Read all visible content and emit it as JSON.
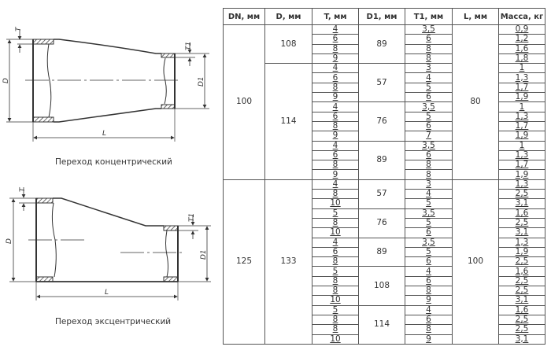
{
  "drawings": {
    "concentric": {
      "caption": "Переход концентрический",
      "labels": {
        "t": "T",
        "d": "D",
        "t1": "T1",
        "d1": "D1",
        "l": "L"
      }
    },
    "eccentric": {
      "caption": "Переход эксцентрический",
      "labels": {
        "t": "T",
        "d": "D",
        "t1": "T1",
        "d1": "D1",
        "l": "L"
      }
    }
  },
  "table": {
    "headers": [
      "DN, мм",
      "D, мм",
      "T, мм",
      "D1, мм",
      "T1, мм",
      "L, мм",
      "Масса, кг"
    ],
    "groups": [
      {
        "dn": "100",
        "l": "80",
        "d_groups": [
          {
            "d": "108",
            "d1_groups": [
              {
                "d1": "89",
                "rows": [
                  [
                    "4",
                    "3,5",
                    "0,9"
                  ],
                  [
                    "6",
                    "6",
                    "1,2"
                  ],
                  [
                    "8",
                    "8",
                    "1,6"
                  ],
                  [
                    "9",
                    "8",
                    "1,8"
                  ]
                ]
              }
            ]
          },
          {
            "d": "114",
            "d1_groups": [
              {
                "d1": "57",
                "rows": [
                  [
                    "4",
                    "3",
                    "1"
                  ],
                  [
                    "6",
                    "4",
                    "1,3"
                  ],
                  [
                    "8",
                    "5",
                    "1,7"
                  ],
                  [
                    "9",
                    "6",
                    "1,9"
                  ]
                ]
              },
              {
                "d1": "76",
                "rows": [
                  [
                    "4",
                    "3,5",
                    "1"
                  ],
                  [
                    "6",
                    "5",
                    "1,3"
                  ],
                  [
                    "8",
                    "6",
                    "1,7"
                  ],
                  [
                    "9",
                    "7",
                    "1,9"
                  ]
                ]
              },
              {
                "d1": "89",
                "rows": [
                  [
                    "4",
                    "3,5",
                    "1"
                  ],
                  [
                    "6",
                    "6",
                    "1,3"
                  ],
                  [
                    "8",
                    "8",
                    "1,7"
                  ],
                  [
                    "9",
                    "8",
                    "1,9"
                  ]
                ]
              }
            ]
          }
        ]
      },
      {
        "dn": "125",
        "l": "100",
        "d_groups": [
          {
            "d": "133",
            "d1_groups": [
              {
                "d1": "57",
                "rows": [
                  [
                    "4",
                    "3",
                    "1,3"
                  ],
                  [
                    "8",
                    "4",
                    "2,5"
                  ],
                  [
                    "10",
                    "5",
                    "3,1"
                  ]
                ]
              },
              {
                "d1": "76",
                "rows": [
                  [
                    "5",
                    "3,5",
                    "1,6"
                  ],
                  [
                    "8",
                    "5",
                    "2,5"
                  ],
                  [
                    "10",
                    "6",
                    "3,1"
                  ]
                ]
              },
              {
                "d1": "89",
                "rows": [
                  [
                    "4",
                    "3,5",
                    "1,3"
                  ],
                  [
                    "6",
                    "5",
                    "1,9"
                  ],
                  [
                    "8",
                    "6",
                    "2,5"
                  ]
                ]
              },
              {
                "d1": "108",
                "rows": [
                  [
                    "5",
                    "4",
                    "1,6"
                  ],
                  [
                    "8",
                    "6",
                    "2,5"
                  ],
                  [
                    "8",
                    "8",
                    "2,5"
                  ],
                  [
                    "10",
                    "9",
                    "3,1"
                  ]
                ]
              },
              {
                "d1": "114",
                "rows": [
                  [
                    "5",
                    "4",
                    "1,6"
                  ],
                  [
                    "8",
                    "6",
                    "2,5"
                  ],
                  [
                    "8",
                    "8",
                    "2,5"
                  ],
                  [
                    "10",
                    "9",
                    "3,1"
                  ]
                ]
              }
            ]
          }
        ]
      }
    ]
  }
}
